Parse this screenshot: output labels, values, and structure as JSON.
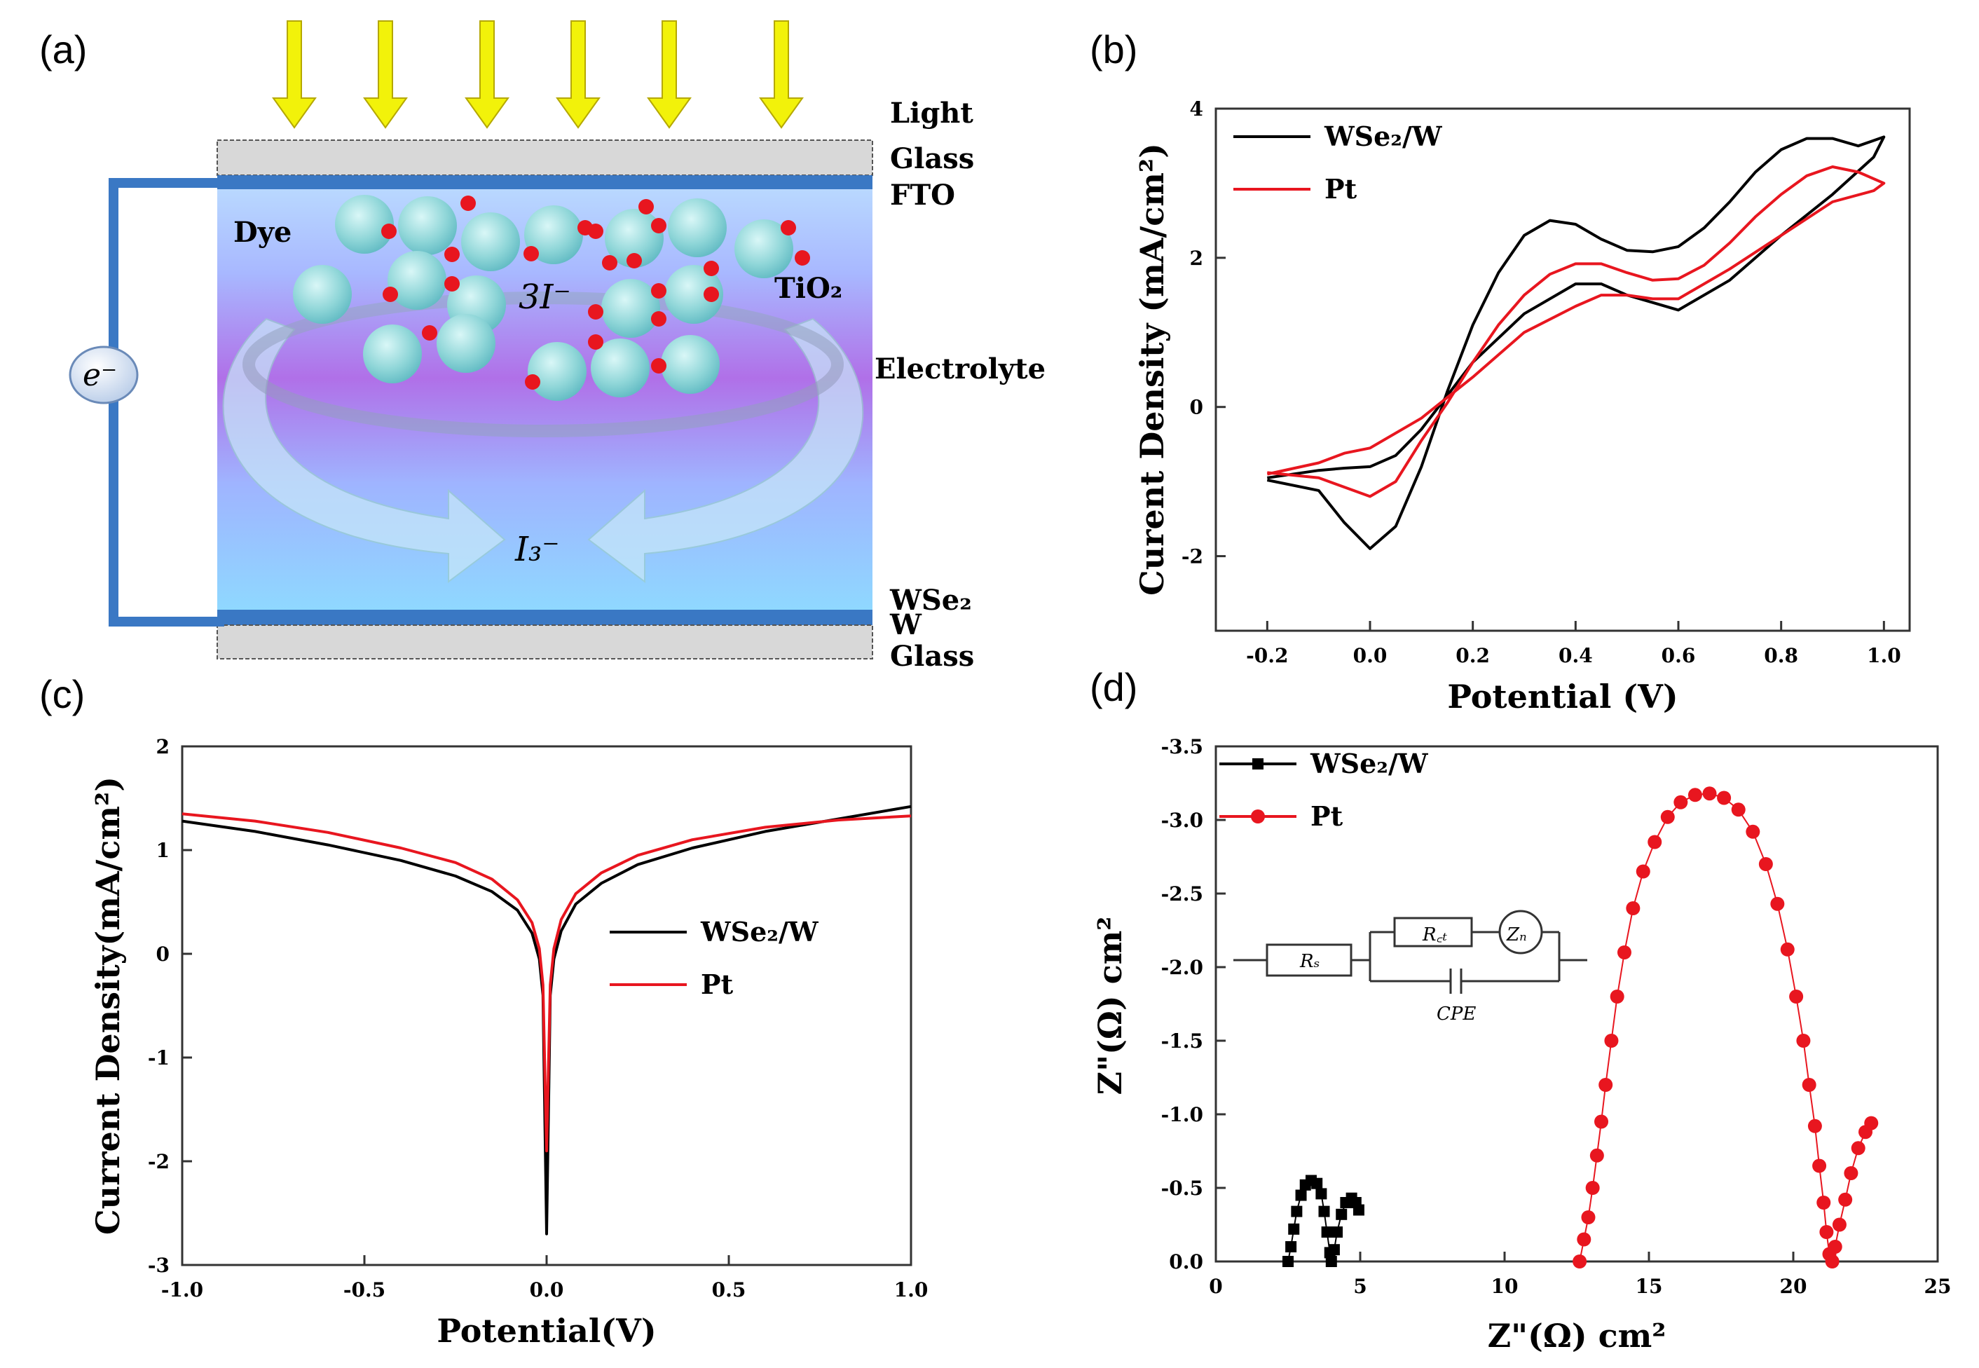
{
  "panels": {
    "a": {
      "label": "(a)",
      "layers": [
        "Light",
        "Glass",
        "FTO",
        "WSe₂",
        "W",
        "Glass"
      ],
      "dye_label": "Dye",
      "tio2_label": "TiO₂",
      "electrolyte_label": "Electrolyte",
      "species_3i": "3I⁻",
      "species_i3": "I₃⁻",
      "electron": "e⁻",
      "colors": {
        "arrow": "#f2f20a",
        "electrode": "#3a78c4",
        "particle": "#8fd6d8",
        "dot": "#e8161f"
      }
    },
    "b": {
      "label": "(b)"
    },
    "c": {
      "label": "(c)"
    },
    "d": {
      "label": "(d)",
      "circuit": {
        "rs": "Rₛ",
        "rct": "R꜀ₜ",
        "zn": "Zₙ",
        "cpe": "CPE"
      }
    }
  },
  "chart_data": [
    {
      "id": "b",
      "type": "line",
      "xlabel": "Potential (V)",
      "ylabel": "Curent Density (mA/cm²)",
      "xlim": [
        -0.3,
        1.05
      ],
      "ylim": [
        -3,
        4
      ],
      "xticks": [
        -0.2,
        0.0,
        0.2,
        0.4,
        0.6,
        0.8,
        1.0
      ],
      "xtick_labels": [
        "-0.2",
        "0.0",
        "0.2",
        "0.4",
        "0.6",
        "0.8",
        "1.0"
      ],
      "yticks": [
        -2,
        0,
        2,
        4
      ],
      "ytick_labels": [
        "-2",
        "0",
        "2",
        "4"
      ],
      "legend": "top-left",
      "series": [
        {
          "name": "WSe₂/W",
          "color": "#000000",
          "points": [
            [
              -0.2,
              -0.98
            ],
            [
              -0.1,
              -1.12
            ],
            [
              -0.05,
              -1.55
            ],
            [
              0.0,
              -1.9
            ],
            [
              0.05,
              -1.6
            ],
            [
              0.1,
              -0.8
            ],
            [
              0.15,
              0.2
            ],
            [
              0.2,
              1.1
            ],
            [
              0.25,
              1.8
            ],
            [
              0.3,
              2.3
            ],
            [
              0.35,
              2.5
            ],
            [
              0.4,
              2.45
            ],
            [
              0.45,
              2.25
            ],
            [
              0.5,
              2.1
            ],
            [
              0.55,
              2.08
            ],
            [
              0.6,
              2.15
            ],
            [
              0.65,
              2.4
            ],
            [
              0.7,
              2.75
            ],
            [
              0.75,
              3.15
            ],
            [
              0.8,
              3.45
            ],
            [
              0.85,
              3.6
            ],
            [
              0.9,
              3.6
            ],
            [
              0.95,
              3.5
            ],
            [
              1.0,
              3.62
            ],
            [
              0.98,
              3.35
            ],
            [
              0.9,
              2.85
            ],
            [
              0.8,
              2.3
            ],
            [
              0.7,
              1.7
            ],
            [
              0.6,
              1.3
            ],
            [
              0.55,
              1.4
            ],
            [
              0.5,
              1.5
            ],
            [
              0.45,
              1.65
            ],
            [
              0.4,
              1.65
            ],
            [
              0.3,
              1.25
            ],
            [
              0.2,
              0.6
            ],
            [
              0.1,
              -0.3
            ],
            [
              0.05,
              -0.65
            ],
            [
              0.0,
              -0.8
            ],
            [
              -0.05,
              -0.82
            ],
            [
              -0.1,
              -0.85
            ],
            [
              -0.2,
              -0.95
            ]
          ]
        },
        {
          "name": "Pt",
          "color": "#e8161f",
          "points": [
            [
              -0.2,
              -0.88
            ],
            [
              -0.1,
              -0.95
            ],
            [
              0.0,
              -1.2
            ],
            [
              0.05,
              -1.0
            ],
            [
              0.1,
              -0.45
            ],
            [
              0.15,
              0.05
            ],
            [
              0.2,
              0.6
            ],
            [
              0.25,
              1.1
            ],
            [
              0.3,
              1.5
            ],
            [
              0.35,
              1.78
            ],
            [
              0.4,
              1.92
            ],
            [
              0.45,
              1.92
            ],
            [
              0.5,
              1.8
            ],
            [
              0.55,
              1.7
            ],
            [
              0.6,
              1.72
            ],
            [
              0.65,
              1.9
            ],
            [
              0.7,
              2.2
            ],
            [
              0.75,
              2.55
            ],
            [
              0.8,
              2.85
            ],
            [
              0.85,
              3.1
            ],
            [
              0.9,
              3.22
            ],
            [
              0.95,
              3.15
            ],
            [
              1.0,
              3.0
            ],
            [
              0.98,
              2.9
            ],
            [
              0.9,
              2.75
            ],
            [
              0.8,
              2.3
            ],
            [
              0.7,
              1.85
            ],
            [
              0.6,
              1.45
            ],
            [
              0.55,
              1.45
            ],
            [
              0.5,
              1.5
            ],
            [
              0.45,
              1.5
            ],
            [
              0.4,
              1.35
            ],
            [
              0.3,
              1.0
            ],
            [
              0.2,
              0.4
            ],
            [
              0.1,
              -0.15
            ],
            [
              0.0,
              -0.55
            ],
            [
              -0.05,
              -0.62
            ],
            [
              -0.1,
              -0.75
            ],
            [
              -0.2,
              -0.9
            ]
          ]
        }
      ]
    },
    {
      "id": "c",
      "type": "line",
      "xlabel": "Potential(V)",
      "ylabel": "Current Density(mA/cm²)",
      "xlim": [
        -1.0,
        1.0
      ],
      "ylim": [
        -3,
        2
      ],
      "xticks": [
        -1.0,
        -0.5,
        0.0,
        0.5,
        1.0
      ],
      "xtick_labels": [
        "-1.0",
        "-0.5",
        "0.0",
        "0.5",
        "1.0"
      ],
      "yticks": [
        -3,
        -2,
        -1,
        0,
        1,
        2
      ],
      "ytick_labels": [
        "-3",
        "-2",
        "-1",
        "0",
        "1",
        "2"
      ],
      "legend": "center-right",
      "series": [
        {
          "name": "WSe₂/W",
          "color": "#000000",
          "points": [
            [
              -1.0,
              1.28
            ],
            [
              -0.8,
              1.18
            ],
            [
              -0.6,
              1.05
            ],
            [
              -0.4,
              0.9
            ],
            [
              -0.25,
              0.75
            ],
            [
              -0.15,
              0.6
            ],
            [
              -0.08,
              0.42
            ],
            [
              -0.04,
              0.2
            ],
            [
              -0.02,
              -0.05
            ],
            [
              -0.01,
              -0.4
            ],
            [
              0.0,
              -2.7
            ],
            [
              0.01,
              -0.4
            ],
            [
              0.02,
              -0.05
            ],
            [
              0.04,
              0.22
            ],
            [
              0.08,
              0.48
            ],
            [
              0.15,
              0.68
            ],
            [
              0.25,
              0.86
            ],
            [
              0.4,
              1.02
            ],
            [
              0.6,
              1.18
            ],
            [
              0.8,
              1.3
            ],
            [
              1.0,
              1.42
            ]
          ]
        },
        {
          "name": "Pt",
          "color": "#e8161f",
          "points": [
            [
              -1.0,
              1.35
            ],
            [
              -0.8,
              1.28
            ],
            [
              -0.6,
              1.17
            ],
            [
              -0.4,
              1.02
            ],
            [
              -0.25,
              0.88
            ],
            [
              -0.15,
              0.72
            ],
            [
              -0.08,
              0.52
            ],
            [
              -0.04,
              0.3
            ],
            [
              -0.02,
              0.05
            ],
            [
              -0.01,
              -0.3
            ],
            [
              0.0,
              -1.9
            ],
            [
              0.01,
              -0.3
            ],
            [
              0.02,
              0.05
            ],
            [
              0.04,
              0.33
            ],
            [
              0.08,
              0.58
            ],
            [
              0.15,
              0.78
            ],
            [
              0.25,
              0.95
            ],
            [
              0.4,
              1.1
            ],
            [
              0.6,
              1.22
            ],
            [
              0.8,
              1.29
            ],
            [
              1.0,
              1.33
            ]
          ]
        }
      ]
    },
    {
      "id": "d",
      "type": "scatter",
      "xlabel": "Z\"(Ω) cm²",
      "ylabel": "Z\"(Ω) cm²",
      "xlim": [
        0,
        25
      ],
      "ylim": [
        0,
        -3.5
      ],
      "xticks": [
        0,
        5,
        10,
        15,
        20,
        25
      ],
      "xtick_labels": [
        "0",
        "5",
        "10",
        "15",
        "20",
        "25"
      ],
      "yticks": [
        0,
        -0.5,
        -1.0,
        -1.5,
        -2.0,
        -2.5,
        -3.0,
        -3.5
      ],
      "ytick_labels": [
        "0.0",
        "-0.5",
        "-1.0",
        "-1.5",
        "-2.0",
        "-2.5",
        "-3.0",
        "-3.5"
      ],
      "legend": "top-left",
      "series": [
        {
          "name": "WSe₂/W",
          "color": "#000000",
          "marker": "square",
          "points": [
            [
              2.5,
              0.0
            ],
            [
              2.6,
              -0.1
            ],
            [
              2.7,
              -0.22
            ],
            [
              2.8,
              -0.34
            ],
            [
              2.95,
              -0.45
            ],
            [
              3.1,
              -0.52
            ],
            [
              3.3,
              -0.55
            ],
            [
              3.5,
              -0.53
            ],
            [
              3.65,
              -0.46
            ],
            [
              3.75,
              -0.34
            ],
            [
              3.85,
              -0.2
            ],
            [
              3.95,
              -0.06
            ],
            [
              4.0,
              0.0
            ],
            [
              4.1,
              -0.08
            ],
            [
              4.2,
              -0.2
            ],
            [
              4.35,
              -0.32
            ],
            [
              4.5,
              -0.4
            ],
            [
              4.7,
              -0.43
            ],
            [
              4.85,
              -0.4
            ],
            [
              4.95,
              -0.35
            ]
          ]
        },
        {
          "name": "Pt",
          "color": "#e8161f",
          "marker": "circle",
          "points": [
            [
              12.6,
              0.0
            ],
            [
              12.75,
              -0.15
            ],
            [
              12.9,
              -0.3
            ],
            [
              13.05,
              -0.5
            ],
            [
              13.2,
              -0.72
            ],
            [
              13.35,
              -0.95
            ],
            [
              13.5,
              -1.2
            ],
            [
              13.7,
              -1.5
            ],
            [
              13.9,
              -1.8
            ],
            [
              14.15,
              -2.1
            ],
            [
              14.45,
              -2.4
            ],
            [
              14.8,
              -2.65
            ],
            [
              15.2,
              -2.85
            ],
            [
              15.65,
              -3.02
            ],
            [
              16.1,
              -3.12
            ],
            [
              16.6,
              -3.17
            ],
            [
              17.1,
              -3.18
            ],
            [
              17.6,
              -3.15
            ],
            [
              18.1,
              -3.07
            ],
            [
              18.6,
              -2.92
            ],
            [
              19.05,
              -2.7
            ],
            [
              19.45,
              -2.43
            ],
            [
              19.8,
              -2.12
            ],
            [
              20.1,
              -1.8
            ],
            [
              20.35,
              -1.5
            ],
            [
              20.55,
              -1.2
            ],
            [
              20.75,
              -0.92
            ],
            [
              20.9,
              -0.65
            ],
            [
              21.05,
              -0.4
            ],
            [
              21.15,
              -0.2
            ],
            [
              21.25,
              -0.05
            ],
            [
              21.35,
              0.0
            ],
            [
              21.45,
              -0.1
            ],
            [
              21.6,
              -0.25
            ],
            [
              21.8,
              -0.42
            ],
            [
              22.0,
              -0.6
            ],
            [
              22.25,
              -0.77
            ],
            [
              22.5,
              -0.88
            ],
            [
              22.7,
              -0.94
            ]
          ]
        }
      ]
    }
  ]
}
